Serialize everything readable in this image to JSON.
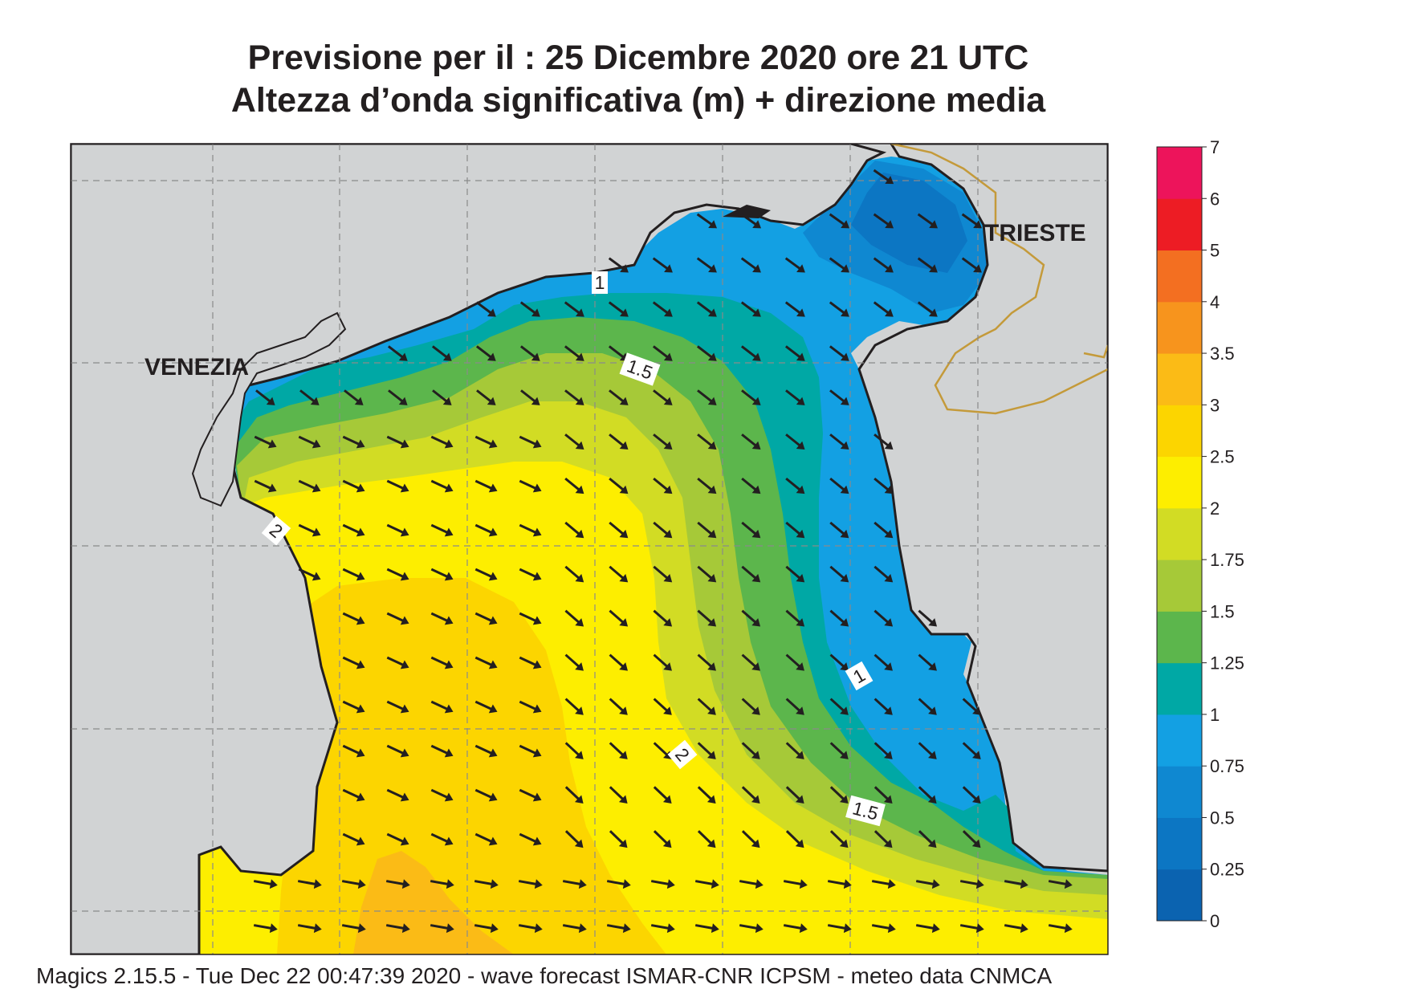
{
  "title": {
    "line1": "Previsione per il  :  25 Dicembre  2020   ore 21 UTC",
    "line2": "Altezza d’onda significativa (m) + direzione media"
  },
  "places": {
    "venezia": "VENEZIA",
    "trieste": "TRIESTE"
  },
  "contour_labels": [
    "1",
    "1.5",
    "2",
    "2",
    "1",
    "2",
    "1.5"
  ],
  "legend": {
    "labels": [
      "0",
      "0.25",
      "0.5",
      "0.75",
      "1",
      "1.25",
      "1.5",
      "1.75",
      "2",
      "2.5",
      "3",
      "3.5",
      "4",
      "5",
      "6",
      "7"
    ],
    "colors": [
      "#0b63b0",
      "#0c76c3",
      "#0f88d1",
      "#13a0e3",
      "#00a8a5",
      "#5cb64c",
      "#a6c938",
      "#d2dc24",
      "#fdee00",
      "#fcd500",
      "#fbbb16",
      "#f7941d",
      "#f36f21",
      "#ed1c24",
      "#ed145b"
    ]
  },
  "field_colors": {
    "land": "#d1d3d4",
    "coast": "#231f20",
    "border": "#c49a3a",
    "arrow": "#231f20",
    "grid": "#8a8a8a"
  },
  "footer": "Magics 2.15.5 - Tue Dec 22 00:47:39 2020 - wave forecast  ISMAR-CNR  ICPSM - meteo data   CNMCA"
}
